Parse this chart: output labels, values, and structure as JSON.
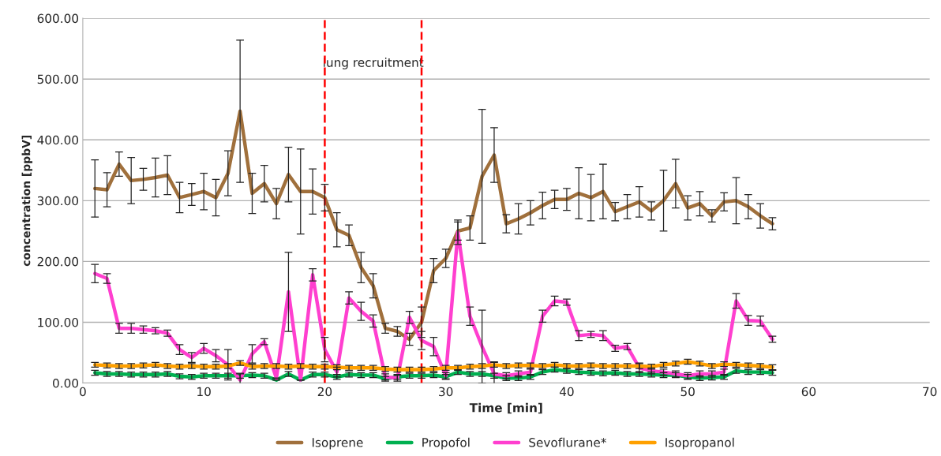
{
  "chart_data": {
    "type": "line",
    "xlabel": "Time [min]",
    "ylabel": "concentration [ppbV]",
    "x": [
      1,
      2,
      3,
      4,
      5,
      6,
      7,
      8,
      9,
      10,
      11,
      12,
      13,
      14,
      15,
      16,
      17,
      18,
      19,
      20,
      21,
      22,
      23,
      24,
      25,
      26,
      27,
      28,
      29,
      30,
      31,
      32,
      33,
      34,
      35,
      36,
      37,
      38,
      39,
      40,
      41,
      42,
      43,
      44,
      45,
      46,
      47,
      48,
      49,
      50,
      51,
      52,
      53,
      54,
      55,
      56,
      57
    ],
    "series": [
      {
        "name": "Isoprene",
        "color": "#a0703c",
        "values": [
          320,
          318,
          360,
          333,
          335,
          338,
          342,
          305,
          310,
          315,
          305,
          345,
          447,
          312,
          328,
          295,
          343,
          315,
          315,
          305,
          252,
          243,
          190,
          160,
          90,
          85,
          72,
          100,
          185,
          205,
          250,
          255,
          340,
          375,
          262,
          270,
          280,
          292,
          302,
          302,
          312,
          305,
          315,
          282,
          290,
          298,
          283,
          300,
          328,
          288,
          295,
          275,
          298,
          300,
          290,
          275,
          262
        ],
        "errors": [
          47,
          28,
          20,
          38,
          18,
          32,
          32,
          25,
          18,
          30,
          30,
          37,
          117,
          33,
          30,
          25,
          45,
          70,
          37,
          22,
          28,
          17,
          25,
          20,
          8,
          8,
          10,
          25,
          20,
          15,
          15,
          20,
          110,
          45,
          15,
          25,
          20,
          22,
          15,
          18,
          42,
          38,
          45,
          15,
          20,
          25,
          15,
          50,
          40,
          20,
          20,
          10,
          15,
          38,
          20,
          20,
          10
        ]
      },
      {
        "name": "Propofol",
        "color": "#00b050",
        "values": [
          17,
          15,
          15,
          14,
          14,
          14,
          15,
          11,
          10,
          12,
          12,
          12,
          12,
          13,
          12,
          5,
          15,
          5,
          14,
          14,
          10,
          14,
          13,
          13,
          7,
          10,
          12,
          12,
          13,
          10,
          18,
          15,
          15,
          12,
          8,
          8,
          10,
          18,
          22,
          20,
          18,
          17,
          16,
          17,
          15,
          15,
          14,
          13,
          13,
          10,
          8,
          9,
          10,
          20,
          18,
          18,
          17
        ],
        "errors": [
          4,
          4,
          4,
          4,
          4,
          4,
          4,
          4,
          4,
          4,
          4,
          4,
          4,
          4,
          4,
          null,
          4,
          null,
          4,
          4,
          4,
          4,
          4,
          4,
          4,
          4,
          4,
          4,
          4,
          4,
          4,
          4,
          4,
          4,
          4,
          4,
          4,
          4,
          4,
          4,
          4,
          4,
          4,
          4,
          4,
          4,
          4,
          4,
          4,
          4,
          4,
          4,
          4,
          4,
          4,
          4,
          4
        ]
      },
      {
        "name": "Sevoflurane*",
        "color": "#ff3fcf",
        "values": [
          180,
          172,
          90,
          90,
          88,
          86,
          82,
          55,
          42,
          57,
          45,
          30,
          5,
          48,
          68,
          8,
          150,
          5,
          178,
          55,
          18,
          140,
          118,
          102,
          10,
          8,
          108,
          70,
          60,
          12,
          248,
          110,
          60,
          15,
          12,
          15,
          18,
          110,
          135,
          133,
          78,
          80,
          78,
          57,
          60,
          25,
          20,
          18,
          15,
          12,
          15,
          15,
          18,
          135,
          103,
          102,
          72
        ],
        "errors": [
          15,
          8,
          8,
          8,
          6,
          5,
          5,
          8,
          8,
          8,
          10,
          25,
          10,
          15,
          5,
          null,
          65,
          null,
          10,
          20,
          8,
          10,
          15,
          10,
          5,
          5,
          10,
          15,
          15,
          5,
          20,
          15,
          60,
          20,
          5,
          5,
          5,
          10,
          8,
          5,
          8,
          5,
          8,
          5,
          5,
          8,
          5,
          5,
          5,
          5,
          5,
          5,
          5,
          12,
          8,
          8,
          5
        ]
      },
      {
        "name": "Isopropanol",
        "color": "#ffa000",
        "values": [
          30,
          29,
          28,
          28,
          29,
          30,
          28,
          27,
          28,
          27,
          27,
          28,
          33,
          27,
          28,
          28,
          27,
          28,
          27,
          27,
          26,
          25,
          25,
          25,
          23,
          22,
          22,
          22,
          23,
          25,
          25,
          27,
          28,
          30,
          28,
          29,
          29,
          28,
          30,
          28,
          28,
          29,
          28,
          28,
          28,
          28,
          27,
          30,
          32,
          35,
          32,
          28,
          31,
          30,
          29,
          28,
          26
        ],
        "errors": [
          4,
          4,
          4,
          4,
          4,
          4,
          4,
          4,
          4,
          4,
          4,
          4,
          4,
          4,
          4,
          4,
          4,
          4,
          4,
          4,
          4,
          4,
          4,
          4,
          4,
          4,
          4,
          4,
          4,
          4,
          4,
          4,
          4,
          4,
          4,
          4,
          4,
          4,
          4,
          4,
          4,
          4,
          4,
          4,
          4,
          4,
          4,
          4,
          4,
          4,
          4,
          4,
          4,
          4,
          4,
          4,
          4
        ]
      }
    ],
    "xlim": [
      0,
      70
    ],
    "xticks": [
      0,
      10,
      20,
      30,
      40,
      50,
      60,
      70
    ],
    "ylim": [
      0,
      600
    ],
    "yticks": [
      {
        "value": 0,
        "label": "0.00"
      },
      {
        "value": 100,
        "label": "100.00"
      },
      {
        "value": 200,
        "label": "200.00"
      },
      {
        "value": 300,
        "label": "300.00"
      },
      {
        "value": 400,
        "label": "400.00"
      },
      {
        "value": 500,
        "label": "500.00"
      },
      {
        "value": 600,
        "label": "600.00"
      }
    ],
    "ref_lines": [
      {
        "axis": "x",
        "value": 20,
        "color": "#ff0000",
        "line_style": "dashed"
      },
      {
        "axis": "x",
        "value": 28,
        "color": "#ff0000",
        "line_style": "dashed"
      }
    ],
    "annotations": [
      "lung recruitment"
    ],
    "grid": "y",
    "legend": "bottom",
    "marker": "none",
    "line_style": "solid"
  }
}
